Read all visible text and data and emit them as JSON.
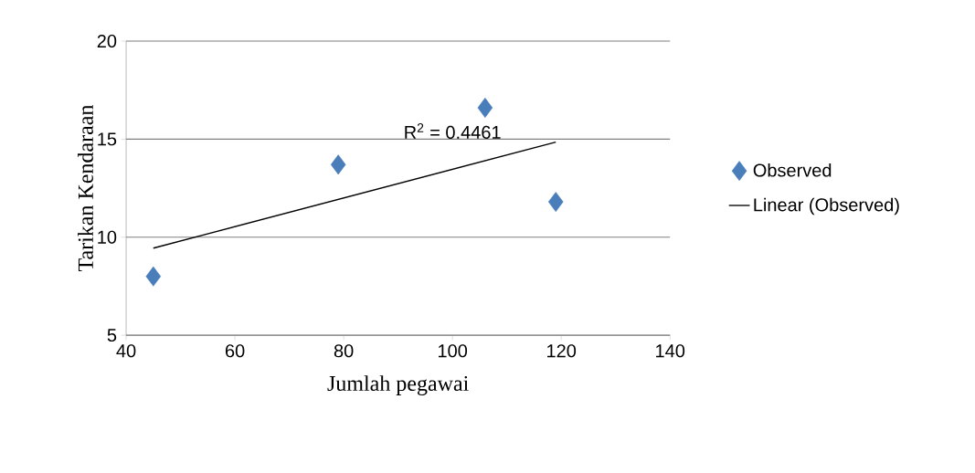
{
  "chart_data": {
    "type": "scatter",
    "xlabel": "Jumlah pegawai",
    "ylabel": "Tarikan Kendaraan",
    "xlim": [
      40,
      140
    ],
    "xticks": [
      40,
      60,
      80,
      100,
      120,
      140
    ],
    "ylim": [
      5,
      20
    ],
    "yticks": [
      5,
      10,
      15,
      20
    ],
    "grid": "y",
    "legend": "right",
    "annotations": [
      "R$^{2}$ = 0.4461"
    ],
    "series": [
      {
        "name": "Observed",
        "color": "#4a7ebb",
        "marker": "diamond",
        "x": [
          45,
          79,
          106,
          119
        ],
        "values": [
          8,
          13.7,
          16.6,
          11.8
        ]
      },
      {
        "name": "Linear (Observed)",
        "type": "line",
        "color": "#000000",
        "marker": "none",
        "line_style": "solid",
        "x": [
          45,
          119
        ],
        "values": [
          9.44,
          14.85
        ]
      }
    ]
  }
}
